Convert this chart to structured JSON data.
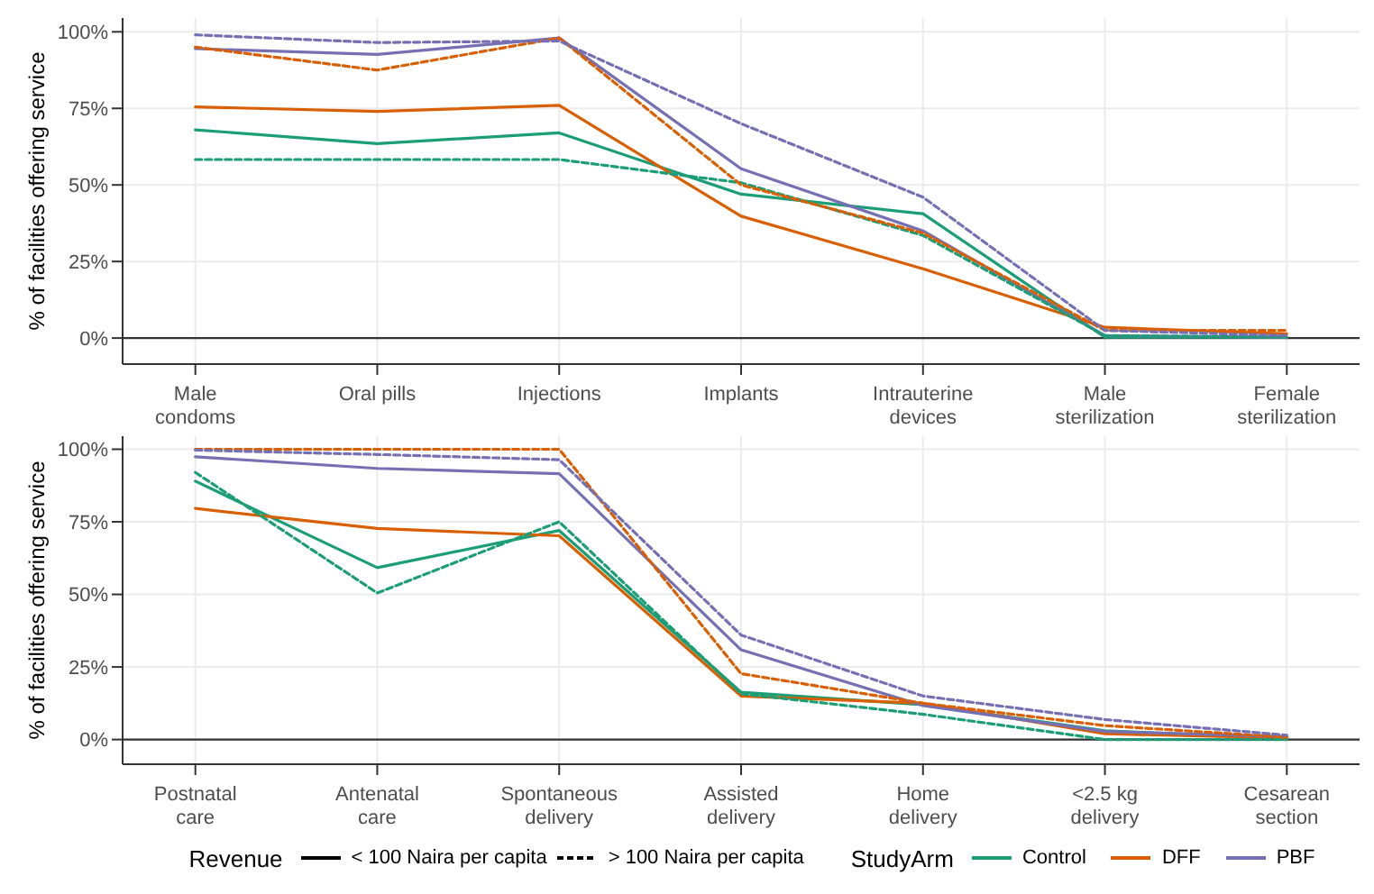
{
  "chart_data": [
    {
      "type": "line",
      "ylabel": "% of facilities offering service",
      "categories": [
        "Male condoms",
        "Oral pills",
        "Injections",
        "Implants",
        "Intrauterine devices",
        "Male sterilization",
        "Female sterilization"
      ],
      "ylim": [
        -8.5,
        104.5
      ],
      "yticks": [
        {
          "value": 0,
          "label": "0%"
        },
        {
          "value": 25,
          "label": "25%"
        },
        {
          "value": 50,
          "label": "50%"
        },
        {
          "value": 75,
          "label": "75%"
        },
        {
          "value": 100,
          "label": "100%"
        }
      ],
      "grid": true,
      "legend": false,
      "marker": "none",
      "ref_lines": [
        {
          "axis": "y",
          "value": 0,
          "color": "#333333"
        }
      ],
      "series": [
        {
          "color": "#1b9e77",
          "line_style": "solid",
          "values": [
            68,
            63.5,
            67,
            47,
            40.6,
            0.3,
            0.3
          ]
        },
        {
          "color": "#1b9e77",
          "line_style": "dashed",
          "values": [
            58.3,
            58.3,
            58.3,
            50.7,
            33.5,
            0.8,
            0.3
          ]
        },
        {
          "color": "#d95f02",
          "line_style": "solid",
          "values": [
            75.5,
            74,
            76,
            39.8,
            22.6,
            3.5,
            1.4
          ]
        },
        {
          "color": "#d95f02",
          "line_style": "dashed",
          "values": [
            95,
            87.5,
            98,
            50,
            34.3,
            2.5,
            2.5
          ]
        },
        {
          "color": "#7570b3",
          "line_style": "solid",
          "values": [
            94.5,
            92.6,
            98,
            55.3,
            35,
            0.8,
            0.3
          ]
        },
        {
          "color": "#7570b3",
          "line_style": "dashed",
          "values": [
            99,
            96.5,
            97,
            70,
            46,
            2.5,
            0.8
          ]
        }
      ]
    },
    {
      "type": "line",
      "ylabel": "% of facilities offering service",
      "categories": [
        "Postnatal care",
        "Antenatal care",
        "Spontaneous delivery",
        "Assisted delivery",
        "Home delivery",
        "<2.5 kg delivery",
        "Cesarean section"
      ],
      "ylim": [
        -8.5,
        104.5
      ],
      "yticks": [
        {
          "value": 0,
          "label": "0%"
        },
        {
          "value": 25,
          "label": "25%"
        },
        {
          "value": 50,
          "label": "50%"
        },
        {
          "value": 75,
          "label": "75%"
        },
        {
          "value": 100,
          "label": "100%"
        }
      ],
      "grid": true,
      "legend": "bottom",
      "legend_title": "StudyArm",
      "marker": "none",
      "ref_lines": [
        {
          "axis": "y",
          "value": 0,
          "color": "#333333"
        }
      ],
      "annotations": [
        "Revenue",
        "< 100 Naira per capita",
        "> 100 Naira per capita"
      ],
      "series": [
        {
          "name": "Control",
          "color": "#1b9e77",
          "line_style": "solid",
          "values": [
            89,
            59.2,
            72,
            16.3,
            12,
            3,
            0.5
          ]
        },
        {
          "color": "#1b9e77",
          "line_style": "dashed",
          "values": [
            92,
            50.5,
            75,
            15.8,
            8.7,
            0,
            0
          ]
        },
        {
          "name": "DFF",
          "color": "#d95f02",
          "line_style": "solid",
          "values": [
            79.6,
            72.7,
            70.2,
            15,
            12.5,
            2,
            0.5
          ]
        },
        {
          "color": "#d95f02",
          "line_style": "dashed",
          "values": [
            100,
            100,
            100,
            22.7,
            12.5,
            4.8,
            0.8
          ]
        },
        {
          "name": "PBF",
          "color": "#7570b3",
          "line_style": "solid",
          "values": [
            97.4,
            93.4,
            91.6,
            30.9,
            11.7,
            2.8,
            1
          ]
        },
        {
          "color": "#7570b3",
          "line_style": "dashed",
          "values": [
            99.7,
            98.2,
            96.4,
            36,
            15,
            6.9,
            1.5
          ]
        }
      ]
    }
  ]
}
